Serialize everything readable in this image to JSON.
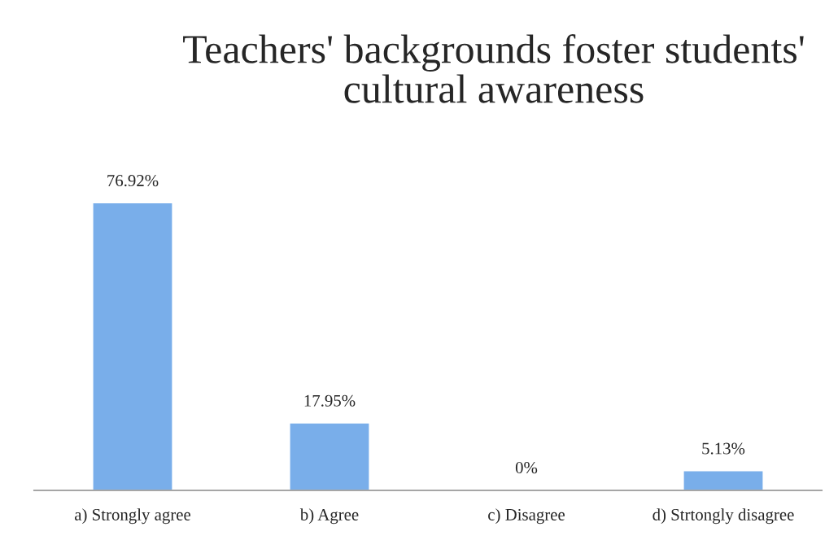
{
  "chart_data": {
    "type": "bar",
    "title": "Teachers' backgrounds foster students' cultural awareness",
    "categories": [
      "a) Strongly agree",
      "b) Agree",
      "c) Disagree",
      "d) Strtongly disagree"
    ],
    "values": [
      76.92,
      17.95,
      0,
      5.13
    ],
    "color": "#79aeea",
    "value_labels": [
      "76.92%",
      "17.95%",
      "0%",
      "5.13%"
    ],
    "tick_labels": "x"
  }
}
